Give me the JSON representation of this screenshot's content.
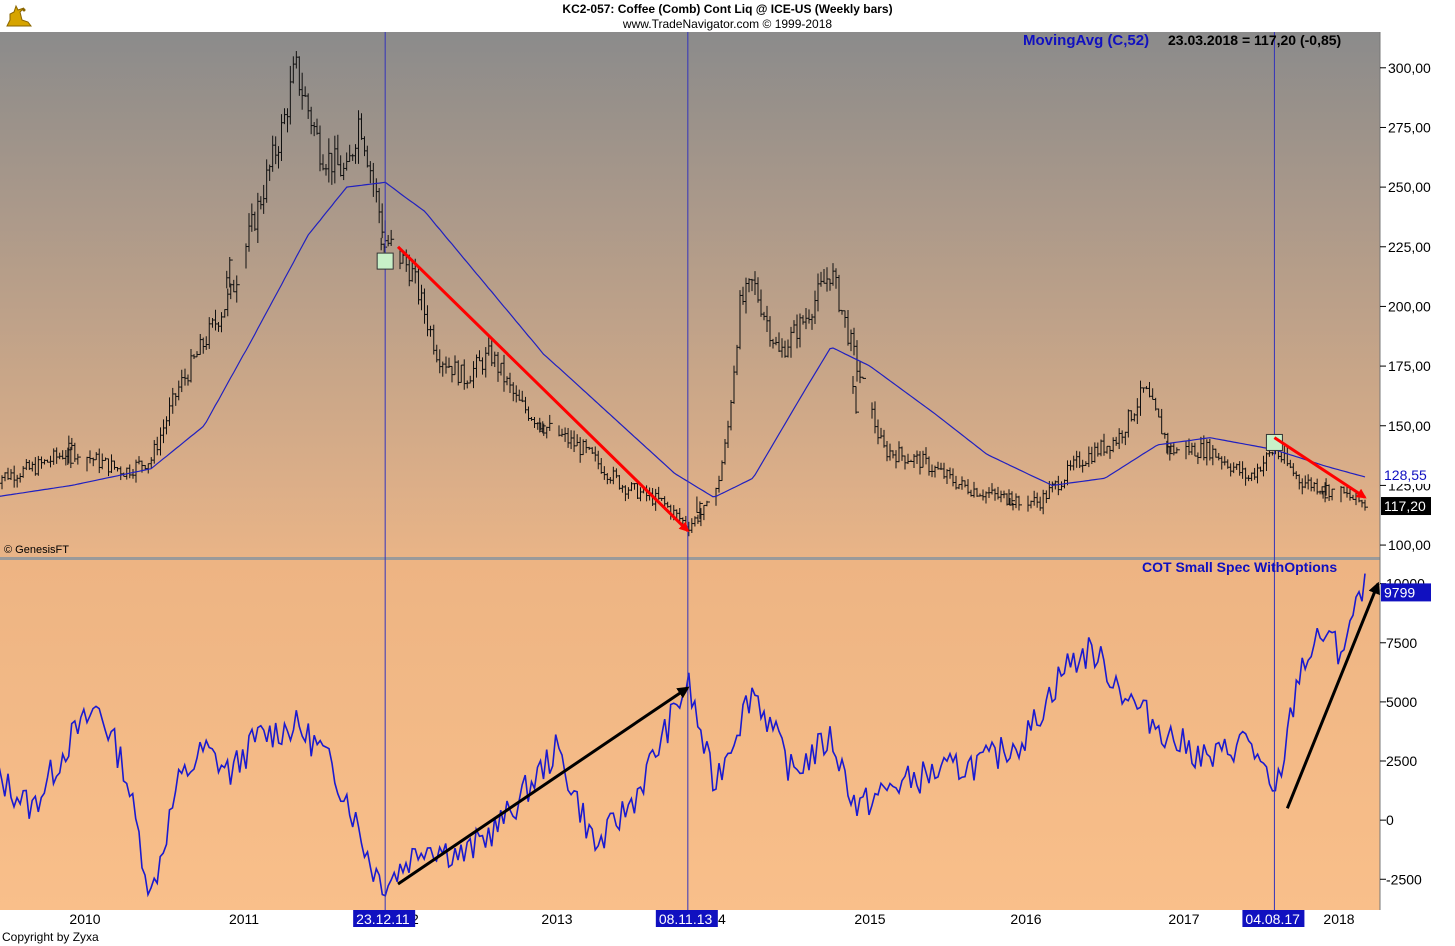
{
  "header": {
    "title_line1": "KC2-057:  Coffee (Comb) Cont Liq @ ICE-US  (Weekly bars)",
    "title_line2": "www.TradeNavigator.com © 1999-2018",
    "logo_icon": "gold-bull-logo-icon"
  },
  "price_panel": {
    "indicator_name": "MovingAvg (C,52)",
    "indicator_value": "23.03.2018 = 117,20 (-0,85)",
    "watermark": "© GenesisFT",
    "ma_last_label": "128,55",
    "price_last_label": "117,20",
    "y_ticks": [
      "100,00",
      "125,00",
      "150,00",
      "175,00",
      "200,00",
      "225,00",
      "250,00",
      "275,00",
      "300,00"
    ]
  },
  "cot_panel": {
    "indicator_name": "COT Small Spec WithOptions",
    "last_label": "9799",
    "y_ticks": [
      "-2500",
      "0",
      "2500",
      "5000",
      "7500",
      "10000"
    ]
  },
  "x_axis": {
    "year_labels": [
      "2010",
      "2011",
      "12",
      "2013",
      "14",
      "2015",
      "2016",
      "2017",
      "2018"
    ],
    "marker_labels": [
      "23.12.11",
      "08.11.13",
      "04.08.17"
    ]
  },
  "footer": {
    "copyright": "Copyright by Zyxa"
  },
  "colors": {
    "bg_top_price": "#8b8b8b",
    "bg_bottom_price": "#e9b487",
    "bg_cot": "#f6bc88",
    "ma_line": "#2020c0",
    "cot_line": "#1a1ad0",
    "bars": "#101010",
    "red_arrow": "#ff0000",
    "black_arrow": "#000000",
    "marker_line": "#3333bb",
    "label_bg_blue": "#1010c0"
  },
  "chart_data": [
    {
      "type": "ohlc-line",
      "title": "KC2-057: Coffee (Comb) Cont Liq @ ICE-US (Weekly bars)",
      "ylim": [
        95,
        315
      ],
      "x_range": [
        "2009-06",
        "2018-04"
      ],
      "price_close": [
        [
          "2009-06",
          128
        ],
        [
          "2009-09",
          132
        ],
        [
          "2009-12",
          140
        ],
        [
          "2010-02",
          135
        ],
        [
          "2010-04",
          131
        ],
        [
          "2010-06",
          136
        ],
        [
          "2010-08",
          165
        ],
        [
          "2010-10",
          185
        ],
        [
          "2010-12",
          205
        ],
        [
          "2011-02",
          240
        ],
        [
          "2011-04",
          275
        ],
        [
          "2011-05",
          300
        ],
        [
          "2011-07",
          265
        ],
        [
          "2011-09",
          255
        ],
        [
          "2011-10",
          280
        ],
        [
          "2011-12",
          228
        ],
        [
          "2012-02",
          215
        ],
        [
          "2012-04",
          180
        ],
        [
          "2012-06",
          170
        ],
        [
          "2012-08",
          180
        ],
        [
          "2012-10",
          160
        ],
        [
          "2012-12",
          150
        ],
        [
          "2013-03",
          140
        ],
        [
          "2013-06",
          125
        ],
        [
          "2013-09",
          118
        ],
        [
          "2013-11",
          108
        ],
        [
          "2014-01",
          118
        ],
        [
          "2014-02",
          145
        ],
        [
          "2014-03",
          200
        ],
        [
          "2014-04",
          210
        ],
        [
          "2014-06",
          180
        ],
        [
          "2014-08",
          195
        ],
        [
          "2014-10",
          215
        ],
        [
          "2014-12",
          175
        ],
        [
          "2015-02",
          140
        ],
        [
          "2015-05",
          135
        ],
        [
          "2015-08",
          125
        ],
        [
          "2015-11",
          120
        ],
        [
          "2016-02",
          118
        ],
        [
          "2016-05",
          135
        ],
        [
          "2016-08",
          145
        ],
        [
          "2016-10",
          165
        ],
        [
          "2016-12",
          140
        ],
        [
          "2017-03",
          140
        ],
        [
          "2017-06",
          128
        ],
        [
          "2017-08",
          140
        ],
        [
          "2017-10",
          127
        ],
        [
          "2018-01",
          122
        ],
        [
          "2018-03",
          117.2
        ]
      ],
      "series": [
        {
          "name": "MovingAvg (C,52)",
          "values": [
            [
              "2009-06",
              120
            ],
            [
              "2009-12",
              125
            ],
            [
              "2010-06",
              132
            ],
            [
              "2010-10",
              150
            ],
            [
              "2011-02",
              190
            ],
            [
              "2011-06",
              230
            ],
            [
              "2011-09",
              250
            ],
            [
              "2011-12",
              252
            ],
            [
              "2012-03",
              240
            ],
            [
              "2012-06",
              220
            ],
            [
              "2012-09",
              200
            ],
            [
              "2012-12",
              180
            ],
            [
              "2013-06",
              150
            ],
            [
              "2013-10",
              130
            ],
            [
              "2014-01",
              120
            ],
            [
              "2014-04",
              128
            ],
            [
              "2014-08",
              165
            ],
            [
              "2014-10",
              183
            ],
            [
              "2015-01",
              175
            ],
            [
              "2015-06",
              155
            ],
            [
              "2015-10",
              138
            ],
            [
              "2016-03",
              125
            ],
            [
              "2016-07",
              128
            ],
            [
              "2016-11",
              142
            ],
            [
              "2017-03",
              145
            ],
            [
              "2017-08",
              140
            ],
            [
              "2017-12",
              133
            ],
            [
              "2018-03",
              128.55
            ]
          ]
        }
      ],
      "annotations": [
        {
          "type": "arrow",
          "color": "red",
          "from": [
            "2012-01",
            225
          ],
          "to": [
            "2013-11",
            106
          ]
        },
        {
          "type": "arrow",
          "color": "red",
          "from": [
            "2017-08",
            145
          ],
          "to": [
            "2018-03",
            120
          ]
        }
      ]
    },
    {
      "type": "line",
      "title": "COT Small Spec WithOptions",
      "ylim": [
        -3800,
        11000
      ],
      "series": [
        {
          "name": "COT Small Spec WithOptions",
          "values": [
            [
              "2009-06",
              2000
            ],
            [
              "2009-09",
              500
            ],
            [
              "2009-12",
              3500
            ],
            [
              "2010-02",
              4800
            ],
            [
              "2010-04",
              2200
            ],
            [
              "2010-06",
              -3200
            ],
            [
              "2010-08",
              1500
            ],
            [
              "2010-10",
              3000
            ],
            [
              "2010-12",
              2000
            ],
            [
              "2011-02",
              3500
            ],
            [
              "2011-05",
              4000
            ],
            [
              "2011-07",
              3000
            ],
            [
              "2011-09",
              1000
            ],
            [
              "2011-11",
              -2000
            ],
            [
              "2011-12",
              -2700
            ],
            [
              "2012-03",
              -1000
            ],
            [
              "2012-06",
              -1500
            ],
            [
              "2012-09",
              0
            ],
            [
              "2013-01",
              3000
            ],
            [
              "2013-04",
              -1200
            ],
            [
              "2013-07",
              1000
            ],
            [
              "2013-11",
              5800
            ],
            [
              "2014-01",
              1500
            ],
            [
              "2014-04",
              5600
            ],
            [
              "2014-07",
              2000
            ],
            [
              "2014-10",
              3500
            ],
            [
              "2014-12",
              500
            ],
            [
              "2015-03",
              1500
            ],
            [
              "2015-06",
              2000
            ],
            [
              "2015-10",
              2500
            ],
            [
              "2016-01",
              3500
            ],
            [
              "2016-04",
              6500
            ],
            [
              "2016-06",
              7200
            ],
            [
              "2016-09",
              5000
            ],
            [
              "2016-12",
              3500
            ],
            [
              "2017-03",
              2500
            ],
            [
              "2017-06",
              3500
            ],
            [
              "2017-08",
              800
            ],
            [
              "2017-09",
              3500
            ],
            [
              "2017-10",
              6500
            ],
            [
              "2017-12",
              8000
            ],
            [
              "2018-01",
              7000
            ],
            [
              "2018-02",
              8500
            ],
            [
              "2018-03",
              9799
            ]
          ]
        }
      ],
      "annotations": [
        {
          "type": "arrow",
          "color": "black",
          "from": [
            "2012-01",
            -2700
          ],
          "to": [
            "2013-11",
            5600
          ]
        },
        {
          "type": "arrow",
          "color": "black",
          "from": [
            "2017-09",
            500
          ],
          "to": [
            "2018-04",
            10000
          ]
        }
      ]
    }
  ]
}
